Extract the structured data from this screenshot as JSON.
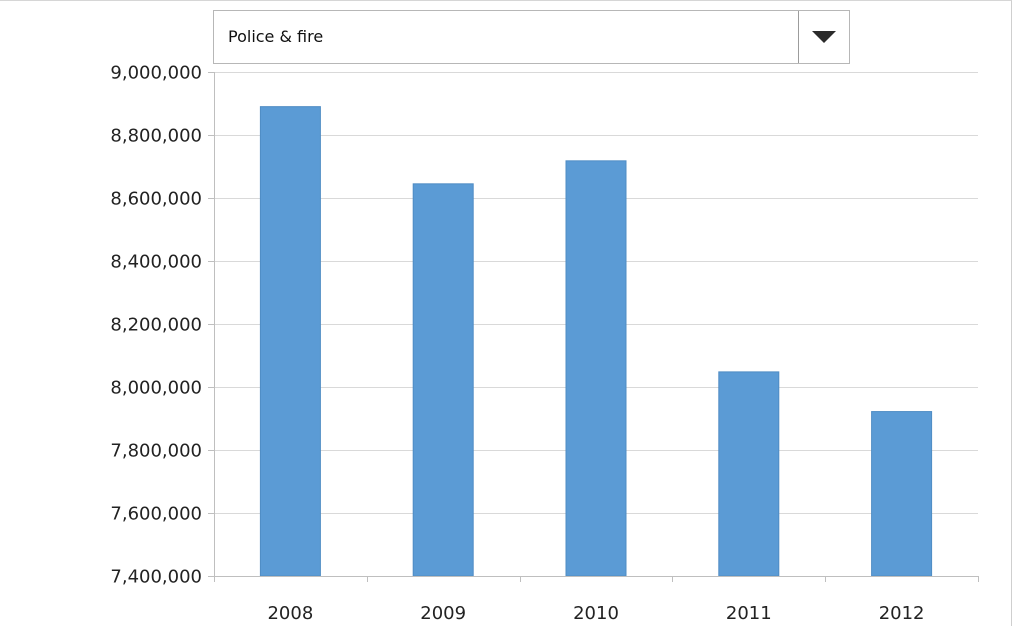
{
  "selector": {
    "selected_value": "Police & fire",
    "arrow_icon": "caret-down-icon"
  },
  "colors": {
    "bar": "#5b9bd5",
    "bar_edge": "#4f8cc4",
    "grid": "#d9d9d9",
    "axis": "#bfbfbf"
  },
  "chart_data": {
    "type": "bar",
    "title": "",
    "xlabel": "",
    "ylabel": "",
    "categories": [
      "2008",
      "2009",
      "2010",
      "2011",
      "2012"
    ],
    "values": [
      8890000,
      8645000,
      8718000,
      8048000,
      7922000
    ],
    "ylim": [
      7400000,
      9000000
    ],
    "yticks": [
      7400000,
      7600000,
      7800000,
      8000000,
      8200000,
      8400000,
      8600000,
      8800000,
      9000000
    ],
    "ytick_labels": [
      "7,400,000",
      "7,600,000",
      "7,800,000",
      "8,000,000",
      "8,200,000",
      "8,400,000",
      "8,600,000",
      "8,800,000",
      "9,000,000"
    ],
    "grid": true,
    "legend": false
  }
}
